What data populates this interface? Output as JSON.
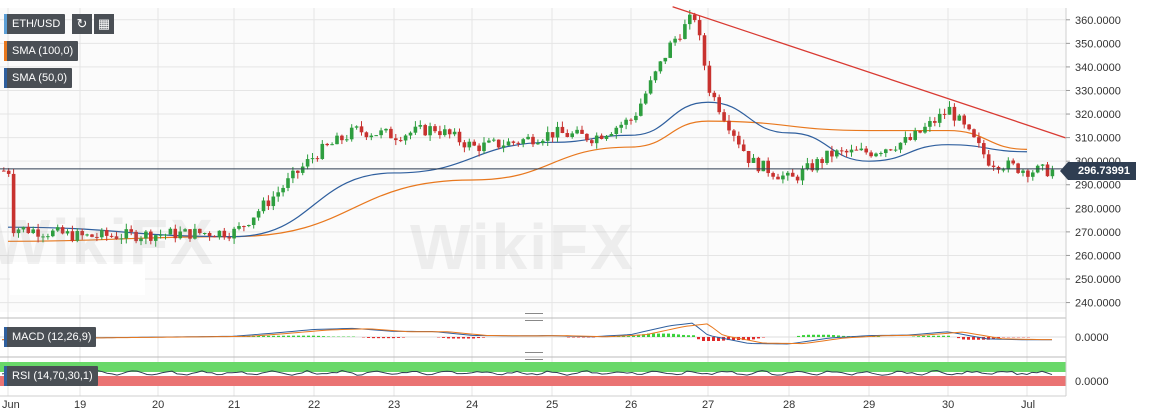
{
  "chart_data": [
    {
      "type": "candlestick",
      "title": "ETH/USD",
      "indicators": [
        {
          "name": "SMA (100,0)",
          "color": "#e8781e"
        },
        {
          "name": "SMA (50,0)",
          "color": "#2f5f9e"
        }
      ],
      "x_labels": [
        "Jun",
        "19",
        "20",
        "21",
        "22",
        "23",
        "24",
        "25",
        "26",
        "27",
        "28",
        "29",
        "30",
        "Jul"
      ],
      "y_ticks": [
        "360.0000",
        "350.0000",
        "340.0000",
        "330.0000",
        "320.0000",
        "310.0000",
        "300.0000",
        "290.0000",
        "280.0000",
        "270.0000",
        "260.0000",
        "250.0000",
        "240.0000"
      ],
      "ylim": [
        236,
        365
      ],
      "current_price": "296.73991",
      "close_series": [
        [
          "Jun",
          272
        ],
        [
          "19",
          268
        ],
        [
          "20",
          269
        ],
        [
          "21",
          270
        ],
        [
          "21.5",
          286
        ],
        [
          "22",
          303
        ],
        [
          "22.5",
          313
        ],
        [
          "23",
          311
        ],
        [
          "23.5",
          314
        ],
        [
          "24",
          306
        ],
        [
          "24.5",
          308
        ],
        [
          "25",
          312
        ],
        [
          "25.5",
          310
        ],
        [
          "26",
          318
        ],
        [
          "26.5",
          350
        ],
        [
          "26.8",
          362
        ],
        [
          "27",
          330
        ],
        [
          "27.5",
          300
        ],
        [
          "28",
          292
        ],
        [
          "28.5",
          303
        ],
        [
          "29",
          304
        ],
        [
          "29.5",
          309
        ],
        [
          "30",
          322
        ],
        [
          "30.5",
          300
        ],
        [
          "Jul",
          296
        ]
      ],
      "sma100": [
        [
          "Jun",
          266
        ],
        [
          "21",
          268
        ],
        [
          "24",
          292
        ],
        [
          "26",
          306
        ],
        [
          "27",
          317
        ],
        [
          "29",
          313
        ],
        [
          "30",
          313
        ],
        [
          "Jul",
          305
        ]
      ],
      "sma50": [
        [
          "Jun",
          272
        ],
        [
          "21",
          268
        ],
        [
          "23",
          295
        ],
        [
          "25",
          308
        ],
        [
          "26",
          311
        ],
        [
          "27",
          325
        ],
        [
          "28",
          312
        ],
        [
          "29",
          300
        ],
        [
          "30",
          307
        ],
        [
          "Jul",
          304
        ]
      ],
      "trendline": {
        "from": [
          "26.8",
          363
        ],
        "to": [
          "Jul",
          309
        ],
        "color": "#d93a32"
      }
    },
    {
      "type": "line",
      "title": "MACD (12,26,9)",
      "y_ticks": [
        "0.0000"
      ]
    },
    {
      "type": "line",
      "title": "RSI (14,70,30,1)",
      "y_ticks": [
        "0.0000"
      ]
    }
  ],
  "toolbar": {
    "refresh_icon": "refresh-icon",
    "calendar_icon": "calendar-icon"
  },
  "watermark": "WikiFX",
  "colors": {
    "up": "#2e9e3f",
    "down": "#c8322f",
    "grid": "#e5e5e5",
    "axis_text": "#333333"
  }
}
